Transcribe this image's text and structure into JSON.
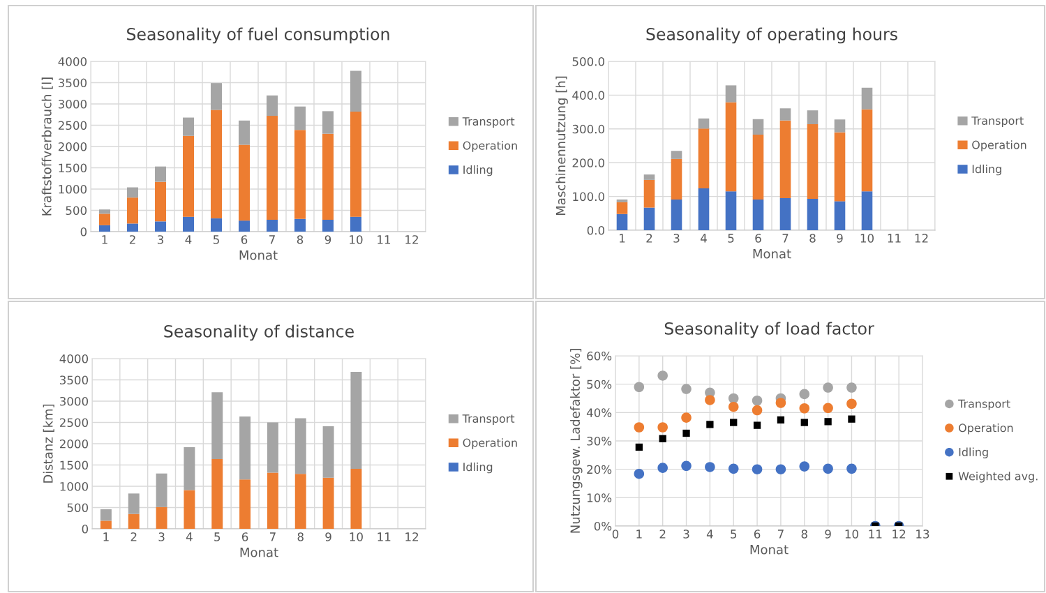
{
  "chart_data": [
    {
      "type": "bar",
      "stacked": true,
      "title": "Seasonality of fuel consumption",
      "xlabel": "Monat",
      "ylabel": "Kraftstoffverbrauch [l]",
      "categories": [
        "1",
        "2",
        "3",
        "4",
        "5",
        "6",
        "7",
        "8",
        "9",
        "10",
        "11",
        "12"
      ],
      "ylim": [
        0,
        4000
      ],
      "yticks": [
        0,
        500,
        1000,
        1500,
        2000,
        2500,
        3000,
        3500,
        4000
      ],
      "grid": true,
      "legend": "right",
      "series": [
        {
          "name": "Idling",
          "color": "#4472c4",
          "values": [
            150,
            190,
            240,
            350,
            310,
            260,
            280,
            300,
            280,
            350,
            null,
            null
          ]
        },
        {
          "name": "Operation",
          "color": "#ed7d31",
          "values": [
            270,
            610,
            930,
            1900,
            2550,
            1780,
            2440,
            2090,
            2020,
            2470,
            null,
            null
          ]
        },
        {
          "name": "Transport",
          "color": "#a5a5a5",
          "values": [
            100,
            240,
            360,
            430,
            630,
            570,
            480,
            550,
            530,
            960,
            null,
            null
          ]
        }
      ]
    },
    {
      "type": "bar",
      "stacked": true,
      "title": "Seasonality of operating hours",
      "xlabel": "Monat",
      "ylabel": "Maschinennutzung [h]",
      "categories": [
        "1",
        "2",
        "3",
        "4",
        "5",
        "6",
        "7",
        "8",
        "9",
        "10",
        "11",
        "12"
      ],
      "ylim": [
        0,
        500
      ],
      "yticks": [
        {
          "value": 0,
          "label": "0.0"
        },
        {
          "value": 100,
          "label": "100.0"
        },
        {
          "value": 200,
          "label": "200.0"
        },
        {
          "value": 300,
          "label": "300.0"
        },
        {
          "value": 400,
          "label": "400.0"
        },
        {
          "value": 500,
          "label": "500.0"
        }
      ],
      "grid": true,
      "legend": "right",
      "series": [
        {
          "name": "Idling",
          "color": "#4472c4",
          "values": [
            48,
            67,
            91,
            124,
            115,
            91,
            95,
            93,
            86,
            115,
            null,
            null
          ]
        },
        {
          "name": "Operation",
          "color": "#ed7d31",
          "values": [
            35,
            82,
            120,
            177,
            264,
            192,
            230,
            221,
            204,
            243,
            null,
            null
          ]
        },
        {
          "name": "Transport",
          "color": "#a5a5a5",
          "values": [
            8,
            16,
            24,
            30,
            50,
            46,
            36,
            41,
            38,
            64,
            null,
            null
          ]
        }
      ]
    },
    {
      "type": "bar",
      "stacked": true,
      "title": "Seasonality of distance",
      "xlabel": "Monat",
      "ylabel": "Distanz [km]",
      "categories": [
        "1",
        "2",
        "3",
        "4",
        "5",
        "6",
        "7",
        "8",
        "9",
        "10",
        "11",
        "12"
      ],
      "ylim": [
        0,
        4000
      ],
      "yticks": [
        0,
        500,
        1000,
        1500,
        2000,
        2500,
        3000,
        3500,
        4000
      ],
      "grid": true,
      "legend": "right",
      "series": [
        {
          "name": "Idling",
          "color": "#4472c4",
          "values": [
            0,
            0,
            0,
            0,
            0,
            0,
            0,
            0,
            0,
            0,
            null,
            null
          ]
        },
        {
          "name": "Operation",
          "color": "#ed7d31",
          "values": [
            190,
            350,
            510,
            910,
            1640,
            1160,
            1320,
            1290,
            1200,
            1410,
            null,
            null
          ]
        },
        {
          "name": "Transport",
          "color": "#a5a5a5",
          "values": [
            270,
            480,
            790,
            1010,
            1570,
            1480,
            1180,
            1310,
            1210,
            2280,
            null,
            null
          ]
        }
      ]
    },
    {
      "type": "scatter",
      "title": "Seasonality of load factor",
      "xlabel": "Monat",
      "ylabel": "Nutzungsgew. Ladefaktor [%]",
      "x": [
        1,
        2,
        3,
        4,
        5,
        6,
        7,
        8,
        9,
        10,
        11,
        12
      ],
      "xlim": [
        0,
        13
      ],
      "xticks": [
        0,
        1,
        2,
        3,
        4,
        5,
        6,
        7,
        8,
        9,
        10,
        11,
        12,
        13
      ],
      "ylim": [
        0,
        60
      ],
      "yticks": [
        {
          "value": 0,
          "label": "0%"
        },
        {
          "value": 10,
          "label": "10%"
        },
        {
          "value": 20,
          "label": "20%"
        },
        {
          "value": 30,
          "label": "30%"
        },
        {
          "value": 40,
          "label": "40%"
        },
        {
          "value": 50,
          "label": "50%"
        },
        {
          "value": 60,
          "label": "60%"
        }
      ],
      "grid": true,
      "legend": "right",
      "marker": "circle",
      "series": [
        {
          "name": "Transport",
          "color": "#a5a5a5",
          "values": [
            49,
            53,
            48.3,
            47,
            45,
            44.2,
            45,
            46.5,
            48.8,
            48.8,
            null,
            null
          ]
        },
        {
          "name": "Operation",
          "color": "#ed7d31",
          "values": [
            34.8,
            34.8,
            38.2,
            44.4,
            42,
            40.8,
            43.4,
            41.5,
            41.6,
            43.1,
            null,
            null
          ]
        },
        {
          "name": "Idling",
          "color": "#4472c4",
          "values": [
            18.4,
            20.5,
            21.2,
            20.8,
            20.2,
            20,
            20,
            21,
            20.2,
            20.2,
            0,
            0
          ]
        },
        {
          "name": "Weighted avg.",
          "color": "#000000",
          "marker": "square",
          "values": [
            27.8,
            30.8,
            32.7,
            35.8,
            36.5,
            35.5,
            37.4,
            36.5,
            36.8,
            37.7,
            0,
            0
          ]
        }
      ]
    }
  ]
}
